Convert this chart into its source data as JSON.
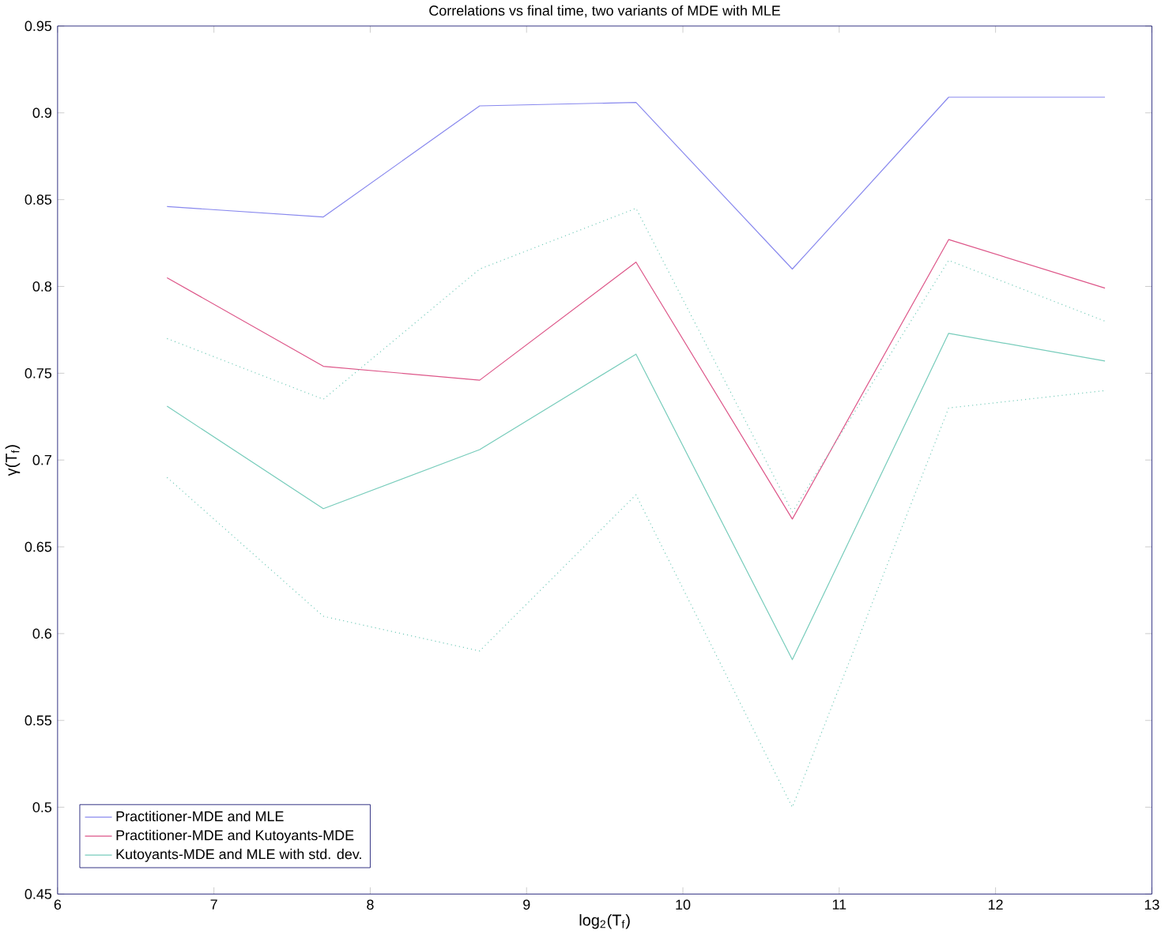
{
  "chart_data": {
    "type": "line",
    "title": "Correlations vs final time, two variants of MDE with MLE",
    "xlabel": "log$_{2}$(T$_{f}$)",
    "ylabel": "γ(T$_{f}$)",
    "x": [
      6.7,
      7.7,
      8.7,
      9.7,
      10.7,
      11.7,
      12.7
    ],
    "series": [
      {
        "name": "Practitioner-MDE and MLE",
        "color": "#8888ee",
        "values": [
          0.846,
          0.84,
          0.904,
          0.906,
          0.81,
          0.909,
          0.909
        ]
      },
      {
        "name": "Practitioner-MDE and Kutoyants-MDE",
        "color": "#dd5588",
        "values": [
          0.805,
          0.754,
          0.746,
          0.814,
          0.666,
          0.827,
          0.799
        ]
      },
      {
        "name": "Kutoyants-MDE and MLE with std. dev.",
        "color": "#77ccbb",
        "values": [
          0.731,
          0.672,
          0.706,
          0.761,
          0.585,
          0.773,
          0.757
        ]
      },
      {
        "color": "#77ccbb",
        "line_style": "dotted",
        "values": [
          0.77,
          0.735,
          0.81,
          0.845,
          0.67,
          0.815,
          0.78
        ]
      },
      {
        "color": "#77ccbb",
        "line_style": "dotted",
        "values": [
          0.69,
          0.61,
          0.59,
          0.68,
          0.5,
          0.73,
          0.74
        ]
      }
    ],
    "xlim": [
      6,
      13
    ],
    "ylim": [
      0.45,
      0.95
    ],
    "xticks": [
      6,
      7,
      8,
      9,
      10,
      11,
      12,
      13
    ],
    "yticks": [
      0.45,
      0.5,
      0.55,
      0.6,
      0.65,
      0.7,
      0.75,
      0.8,
      0.85,
      0.9,
      0.95
    ],
    "grid": false,
    "legend": "bottom left",
    "marker": "none",
    "line_style": "solid"
  }
}
